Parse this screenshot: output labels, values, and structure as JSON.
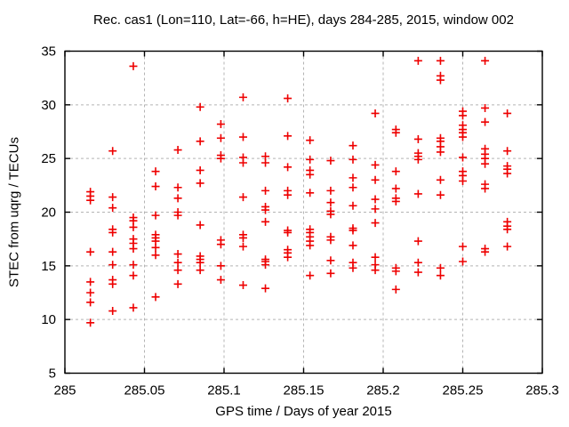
{
  "chart_data": {
    "type": "scatter",
    "title": "Rec. cas1 (Lon=110, Lat=-66, h=HE), days 284-285, 2015, window 002",
    "xlabel": "GPS time / Days of year 2015",
    "ylabel": "STEC from uqrg / TECUs",
    "xlim": [
      285.0,
      285.3
    ],
    "ylim": [
      5,
      35
    ],
    "xticks": [
      {
        "v": 285.0,
        "label": "285"
      },
      {
        "v": 285.05,
        "label": "285.05"
      },
      {
        "v": 285.1,
        "label": "285.1"
      },
      {
        "v": 285.15,
        "label": "285.15"
      },
      {
        "v": 285.2,
        "label": "285.2"
      },
      {
        "v": 285.25,
        "label": "285.25"
      },
      {
        "v": 285.3,
        "label": "285.3"
      }
    ],
    "yticks": [
      {
        "v": 5,
        "label": "5"
      },
      {
        "v": 10,
        "label": "10"
      },
      {
        "v": 15,
        "label": "15"
      },
      {
        "v": 20,
        "label": "20"
      },
      {
        "v": 25,
        "label": "25"
      },
      {
        "v": 30,
        "label": "30"
      },
      {
        "v": 35,
        "label": "35"
      }
    ],
    "grid": true,
    "legend": "none",
    "marker": "plus",
    "marker_color": "#ee0000",
    "grid_color": "#b4b4b4",
    "axis_color": "#000000",
    "points": [
      [
        285.016,
        21.9
      ],
      [
        285.016,
        21.5
      ],
      [
        285.016,
        21.1
      ],
      [
        285.016,
        16.3
      ],
      [
        285.016,
        13.5
      ],
      [
        285.016,
        12.5
      ],
      [
        285.016,
        11.6
      ],
      [
        285.016,
        9.7
      ],
      [
        285.03,
        25.7
      ],
      [
        285.03,
        21.4
      ],
      [
        285.03,
        20.4
      ],
      [
        285.03,
        18.4
      ],
      [
        285.03,
        18.1
      ],
      [
        285.03,
        16.3
      ],
      [
        285.03,
        15.1
      ],
      [
        285.03,
        13.7
      ],
      [
        285.03,
        13.3
      ],
      [
        285.03,
        10.8
      ],
      [
        285.043,
        33.6
      ],
      [
        285.043,
        19.5
      ],
      [
        285.043,
        19.2
      ],
      [
        285.043,
        18.6
      ],
      [
        285.043,
        17.5
      ],
      [
        285.043,
        17.1
      ],
      [
        285.043,
        16.6
      ],
      [
        285.043,
        15.1
      ],
      [
        285.043,
        14.1
      ],
      [
        285.043,
        11.1
      ],
      [
        285.057,
        23.8
      ],
      [
        285.057,
        22.4
      ],
      [
        285.057,
        19.7
      ],
      [
        285.057,
        17.9
      ],
      [
        285.057,
        17.6
      ],
      [
        285.057,
        17.3
      ],
      [
        285.057,
        16.7
      ],
      [
        285.057,
        16.0
      ],
      [
        285.057,
        12.1
      ],
      [
        285.071,
        25.8
      ],
      [
        285.071,
        22.3
      ],
      [
        285.071,
        21.3
      ],
      [
        285.071,
        20.0
      ],
      [
        285.071,
        19.7
      ],
      [
        285.071,
        16.1
      ],
      [
        285.071,
        15.3
      ],
      [
        285.071,
        14.6
      ],
      [
        285.071,
        13.3
      ],
      [
        285.085,
        29.8
      ],
      [
        285.085,
        26.6
      ],
      [
        285.085,
        23.9
      ],
      [
        285.085,
        22.7
      ],
      [
        285.085,
        18.8
      ],
      [
        285.085,
        15.9
      ],
      [
        285.085,
        15.6
      ],
      [
        285.085,
        15.3
      ],
      [
        285.085,
        14.6
      ],
      [
        285.098,
        28.2
      ],
      [
        285.098,
        26.9
      ],
      [
        285.098,
        25.3
      ],
      [
        285.098,
        25.0
      ],
      [
        285.098,
        17.4
      ],
      [
        285.098,
        17.0
      ],
      [
        285.098,
        15.0
      ],
      [
        285.098,
        13.7
      ],
      [
        285.112,
        30.7
      ],
      [
        285.112,
        27.0
      ],
      [
        285.112,
        25.1
      ],
      [
        285.112,
        24.6
      ],
      [
        285.112,
        21.4
      ],
      [
        285.112,
        17.9
      ],
      [
        285.112,
        17.6
      ],
      [
        285.112,
        16.8
      ],
      [
        285.112,
        13.2
      ],
      [
        285.126,
        25.2
      ],
      [
        285.126,
        24.6
      ],
      [
        285.126,
        22.0
      ],
      [
        285.126,
        20.5
      ],
      [
        285.126,
        20.2
      ],
      [
        285.126,
        19.1
      ],
      [
        285.126,
        15.6
      ],
      [
        285.126,
        15.4
      ],
      [
        285.126,
        15.1
      ],
      [
        285.126,
        12.9
      ],
      [
        285.14,
        30.6
      ],
      [
        285.14,
        27.1
      ],
      [
        285.14,
        24.2
      ],
      [
        285.14,
        22.0
      ],
      [
        285.14,
        21.6
      ],
      [
        285.14,
        18.3
      ],
      [
        285.14,
        18.1
      ],
      [
        285.14,
        16.5
      ],
      [
        285.14,
        16.2
      ],
      [
        285.14,
        15.8
      ],
      [
        285.154,
        26.7
      ],
      [
        285.154,
        24.9
      ],
      [
        285.154,
        23.9
      ],
      [
        285.154,
        23.5
      ],
      [
        285.154,
        21.8
      ],
      [
        285.154,
        18.4
      ],
      [
        285.154,
        18.1
      ],
      [
        285.154,
        17.7
      ],
      [
        285.154,
        17.3
      ],
      [
        285.154,
        16.9
      ],
      [
        285.154,
        14.1
      ],
      [
        285.167,
        24.8
      ],
      [
        285.167,
        22.0
      ],
      [
        285.167,
        20.9
      ],
      [
        285.167,
        20.1
      ],
      [
        285.167,
        19.8
      ],
      [
        285.167,
        17.7
      ],
      [
        285.167,
        17.4
      ],
      [
        285.167,
        15.5
      ],
      [
        285.167,
        14.3
      ],
      [
        285.181,
        26.2
      ],
      [
        285.181,
        24.9
      ],
      [
        285.181,
        23.2
      ],
      [
        285.181,
        22.3
      ],
      [
        285.181,
        20.6
      ],
      [
        285.181,
        18.5
      ],
      [
        285.181,
        18.3
      ],
      [
        285.181,
        16.9
      ],
      [
        285.181,
        15.3
      ],
      [
        285.181,
        14.8
      ],
      [
        285.195,
        29.2
      ],
      [
        285.195,
        24.4
      ],
      [
        285.195,
        23.0
      ],
      [
        285.195,
        21.2
      ],
      [
        285.195,
        20.3
      ],
      [
        285.195,
        19.0
      ],
      [
        285.195,
        15.8
      ],
      [
        285.195,
        15.1
      ],
      [
        285.195,
        14.6
      ],
      [
        285.208,
        27.7
      ],
      [
        285.208,
        27.4
      ],
      [
        285.208,
        23.8
      ],
      [
        285.208,
        22.2
      ],
      [
        285.208,
        21.3
      ],
      [
        285.208,
        21.0
      ],
      [
        285.208,
        14.8
      ],
      [
        285.208,
        14.5
      ],
      [
        285.208,
        12.8
      ],
      [
        285.222,
        34.1
      ],
      [
        285.222,
        26.8
      ],
      [
        285.222,
        25.5
      ],
      [
        285.222,
        25.2
      ],
      [
        285.222,
        24.9
      ],
      [
        285.222,
        21.7
      ],
      [
        285.222,
        17.3
      ],
      [
        285.222,
        15.3
      ],
      [
        285.222,
        14.4
      ],
      [
        285.236,
        34.1
      ],
      [
        285.236,
        32.7
      ],
      [
        285.236,
        32.3
      ],
      [
        285.236,
        26.9
      ],
      [
        285.236,
        26.6
      ],
      [
        285.236,
        26.1
      ],
      [
        285.236,
        25.6
      ],
      [
        285.236,
        23.0
      ],
      [
        285.236,
        21.6
      ],
      [
        285.236,
        14.8
      ],
      [
        285.236,
        14.1
      ],
      [
        285.25,
        29.4
      ],
      [
        285.25,
        29.0
      ],
      [
        285.25,
        28.1
      ],
      [
        285.25,
        27.7
      ],
      [
        285.25,
        27.4
      ],
      [
        285.25,
        27.0
      ],
      [
        285.25,
        25.1
      ],
      [
        285.25,
        23.8
      ],
      [
        285.25,
        23.4
      ],
      [
        285.25,
        22.9
      ],
      [
        285.25,
        16.8
      ],
      [
        285.25,
        15.4
      ],
      [
        285.264,
        34.1
      ],
      [
        285.264,
        29.7
      ],
      [
        285.264,
        28.4
      ],
      [
        285.264,
        25.9
      ],
      [
        285.264,
        25.4
      ],
      [
        285.264,
        25.0
      ],
      [
        285.264,
        24.5
      ],
      [
        285.264,
        22.6
      ],
      [
        285.264,
        22.2
      ],
      [
        285.264,
        16.6
      ],
      [
        285.264,
        16.3
      ],
      [
        285.278,
        29.2
      ],
      [
        285.278,
        25.7
      ],
      [
        285.278,
        24.3
      ],
      [
        285.278,
        24.0
      ],
      [
        285.278,
        23.6
      ],
      [
        285.278,
        19.1
      ],
      [
        285.278,
        18.7
      ],
      [
        285.278,
        18.4
      ],
      [
        285.278,
        16.8
      ]
    ]
  }
}
